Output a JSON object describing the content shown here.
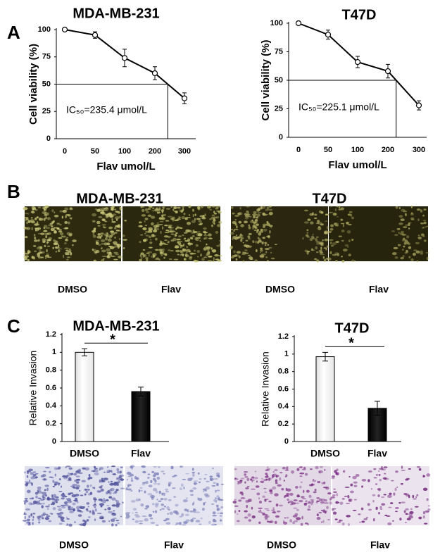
{
  "panel_labels": [
    "A",
    "B",
    "C"
  ],
  "migration": {
    "titles": [
      "MDA-MB-231",
      "T47D"
    ],
    "captions": [
      "DMSO",
      "Flav",
      "DMSO",
      "Flav"
    ]
  },
  "invasion_images": {
    "captions": [
      "DMSO",
      "Flav",
      "DMSO",
      "Flav"
    ]
  },
  "chart_data": [
    {
      "type": "line",
      "title": "MDA-MB-231",
      "categories": [
        "0",
        "50",
        "100",
        "200",
        "300"
      ],
      "values": [
        100,
        95,
        74,
        60,
        37
      ],
      "errors": [
        0,
        3,
        8,
        6,
        5
      ],
      "color": "#000000",
      "xlabel": "Flav umol/L",
      "ylabel": "Cell viability (%)",
      "ylim": [
        0,
        100
      ],
      "yticks": [
        0,
        25,
        50,
        75,
        100
      ],
      "threshold": 50,
      "annotation": "IC₅₀=235.4 μmol/L"
    },
    {
      "type": "line",
      "title": "T47D",
      "categories": [
        "0",
        "50",
        "100",
        "200",
        "300"
      ],
      "values": [
        100,
        90,
        66,
        58,
        28
      ],
      "errors": [
        0,
        4,
        5,
        6,
        4
      ],
      "color": "#000000",
      "xlabel": "Flav umol/L",
      "ylabel": "Cell viability (%)",
      "ylim": [
        0,
        100
      ],
      "yticks": [
        0,
        25,
        50,
        75,
        100
      ],
      "threshold": 50,
      "annotation": "IC₅₀=225.1 μmol/L"
    },
    {
      "type": "bar",
      "title": "MDA-MB-231",
      "categories": [
        "DMSO",
        "Flav"
      ],
      "values": [
        1.0,
        0.56
      ],
      "errors": [
        0.04,
        0.05
      ],
      "colors": [
        "#ffffff",
        "#000000"
      ],
      "ylabel": "Relative Invasion",
      "ylim": [
        0,
        1.2
      ],
      "yticks": [
        0,
        0.2,
        0.4,
        0.6,
        0.8,
        1,
        1.2
      ],
      "annotation": "*"
    },
    {
      "type": "bar",
      "title": "T47D",
      "categories": [
        "DMSO",
        "Flav"
      ],
      "values": [
        0.97,
        0.38
      ],
      "errors": [
        0.05,
        0.08
      ],
      "colors": [
        "#ffffff",
        "#000000"
      ],
      "ylabel": "Relative Invasion",
      "ylim": [
        0,
        1.2
      ],
      "yticks": [
        0,
        0.2,
        0.4,
        0.6,
        0.8,
        1,
        1.2
      ],
      "annotation": "*"
    }
  ]
}
